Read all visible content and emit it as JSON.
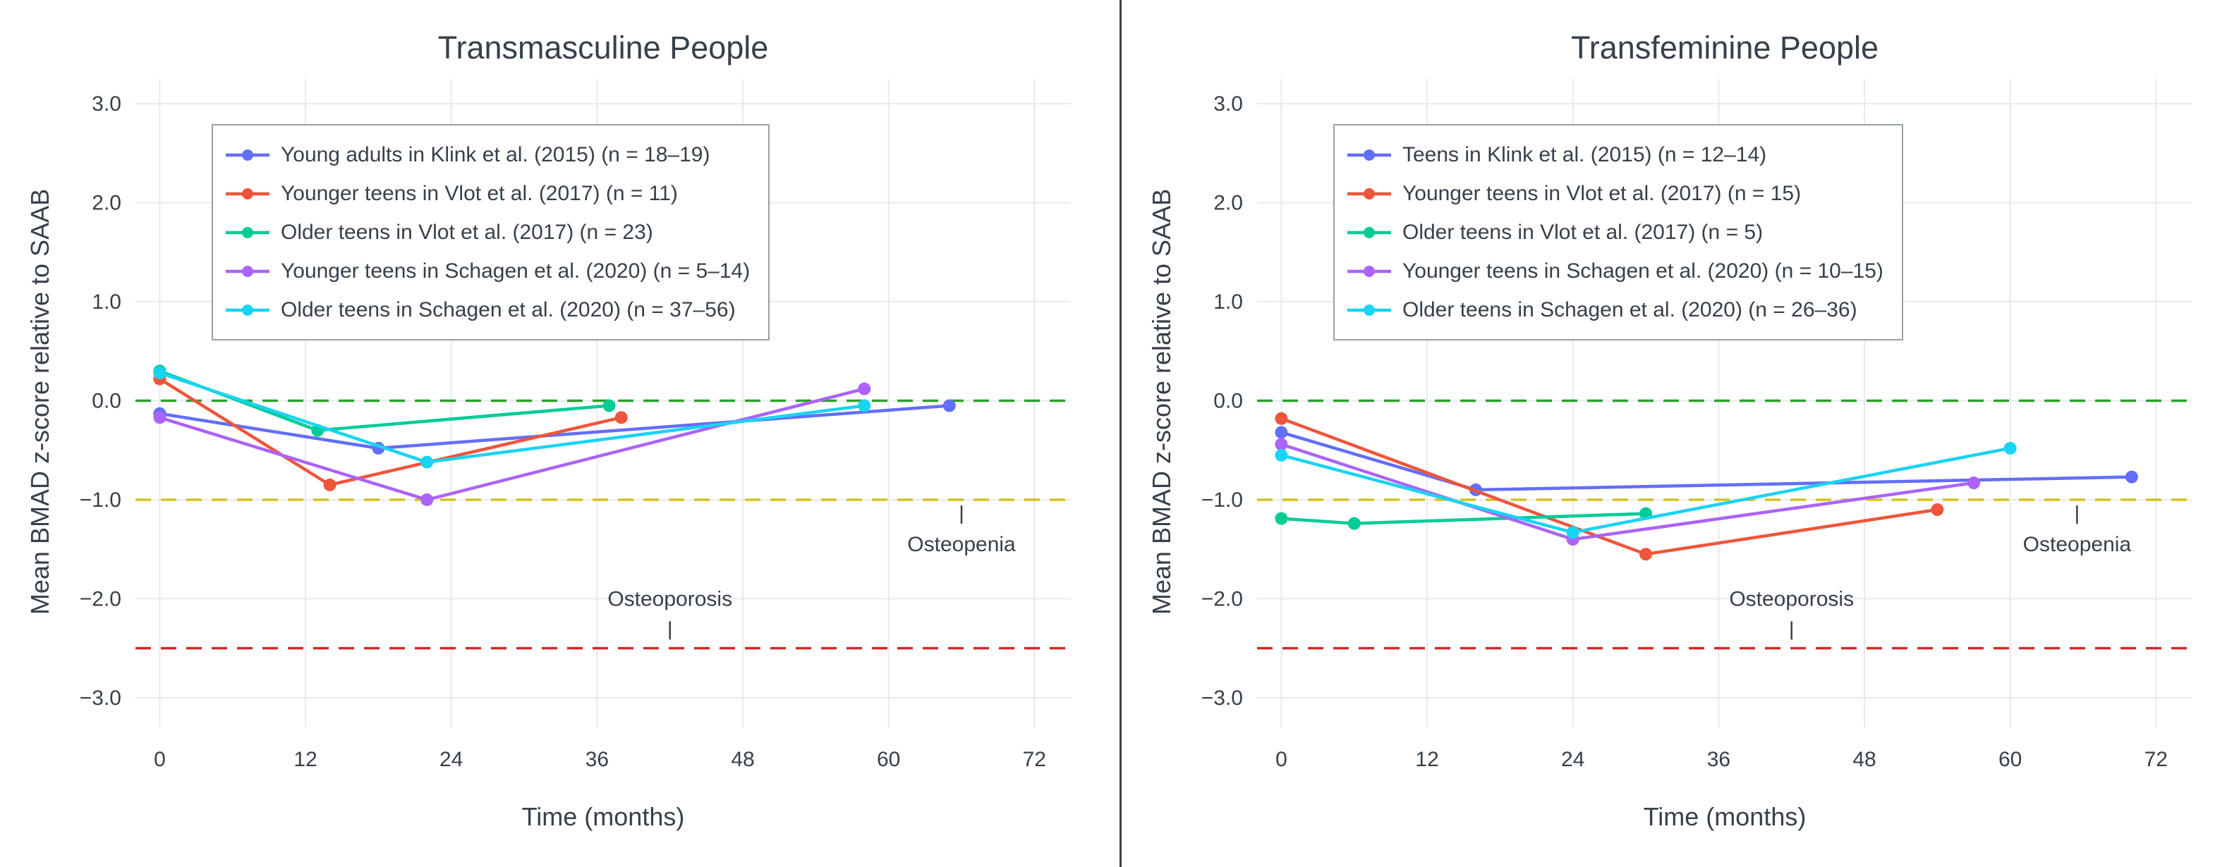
{
  "page": {
    "background": "#ffffff",
    "divider_color": "#3f3f3f",
    "text_color": "#37404a"
  },
  "chart_data": [
    {
      "type": "line",
      "title": "Transmasculine People",
      "xlabel": "Time (months)",
      "ylabel": "Mean BMAD z-score relative to SAAB",
      "xlim": [
        -2,
        75
      ],
      "ylim": [
        -3.3,
        3.25
      ],
      "grid": true,
      "grid_color": "#e7eaed",
      "legend_position": "top-left-inside",
      "xtick_values": [
        0,
        12,
        24,
        36,
        48,
        60,
        72
      ],
      "xtick_labels": [
        "0",
        "12",
        "24",
        "36",
        "48",
        "60",
        "72"
      ],
      "ytick_values": [
        3,
        2,
        1,
        0,
        -1,
        -2,
        -3
      ],
      "ytick_labels": [
        "3.0",
        "2.0",
        "1.0",
        "0.0",
        "−1.0",
        "−2.0",
        "−3.0"
      ],
      "ref_lines": [
        {
          "label": "zero-line",
          "y": 0,
          "color": "#2ca02c"
        },
        {
          "label": "osteopenia-threshold",
          "y": -1,
          "color": "#d4c21e"
        },
        {
          "label": "osteoporosis-threshold",
          "y": -2.5,
          "color": "#d62728"
        }
      ],
      "annotations": [
        {
          "text": "Osteoporosis",
          "x": 42,
          "y": -2.0,
          "tick_x": 42,
          "tick_y": -2.32
        },
        {
          "text": "Osteopenia",
          "x": 66,
          "y": -1.45,
          "tick_x": 66,
          "tick_y": -1.15
        }
      ],
      "series": [
        {
          "name": "Young adults in Klink et al. (2015) (n = 18–19)",
          "color": "#636EFA",
          "x": [
            0,
            18,
            65
          ],
          "y": [
            -0.13,
            -0.48,
            -0.05
          ]
        },
        {
          "name": "Younger teens in Vlot et al. (2017) (n = 11)",
          "color": "#EF553B",
          "x": [
            0,
            14,
            38
          ],
          "y": [
            0.22,
            -0.85,
            -0.17
          ]
        },
        {
          "name": "Older teens in Vlot et al. (2017) (n = 23)",
          "color": "#00CC96",
          "x": [
            0,
            13,
            37
          ],
          "y": [
            0.3,
            -0.3,
            -0.05
          ]
        },
        {
          "name": "Younger teens in Schagen et al. (2020) (n = 5–14)",
          "color": "#AB63FA",
          "x": [
            0,
            22,
            58
          ],
          "y": [
            -0.17,
            -1.0,
            0.12
          ]
        },
        {
          "name": "Older teens in Schagen et al. (2020) (n = 37–56)",
          "color": "#19D3F3",
          "x": [
            0,
            22,
            58
          ],
          "y": [
            0.28,
            -0.62,
            -0.05
          ]
        }
      ]
    },
    {
      "type": "line",
      "title": "Transfeminine People",
      "xlabel": "Time (months)",
      "ylabel": "Mean BMAD z-score relative to SAAB",
      "xlim": [
        -2,
        75
      ],
      "ylim": [
        -3.3,
        3.25
      ],
      "grid": true,
      "grid_color": "#e7eaed",
      "legend_position": "top-left-inside",
      "xtick_values": [
        0,
        12,
        24,
        36,
        48,
        60,
        72
      ],
      "xtick_labels": [
        "0",
        "12",
        "24",
        "36",
        "48",
        "60",
        "72"
      ],
      "ytick_values": [
        3,
        2,
        1,
        0,
        -1,
        -2,
        -3
      ],
      "ytick_labels": [
        "3.0",
        "2.0",
        "1.0",
        "0.0",
        "−1.0",
        "−2.0",
        "−3.0"
      ],
      "ref_lines": [
        {
          "label": "zero-line",
          "y": 0,
          "color": "#2ca02c"
        },
        {
          "label": "osteopenia-threshold",
          "y": -1,
          "color": "#d4c21e"
        },
        {
          "label": "osteoporosis-threshold",
          "y": -2.5,
          "color": "#d62728"
        }
      ],
      "annotations": [
        {
          "text": "Osteoporosis",
          "x": 42,
          "y": -2.0,
          "tick_x": 42,
          "tick_y": -2.32
        },
        {
          "text": "Osteopenia",
          "x": 65.5,
          "y": -1.45,
          "tick_x": 65.5,
          "tick_y": -1.15
        }
      ],
      "series": [
        {
          "name": "Teens in Klink et al. (2015) (n = 12–14)",
          "color": "#636EFA",
          "x": [
            0,
            16,
            70
          ],
          "y": [
            -0.32,
            -0.9,
            -0.77
          ]
        },
        {
          "name": "Younger teens in Vlot et al. (2017) (n = 15)",
          "color": "#EF553B",
          "x": [
            0,
            30,
            54
          ],
          "y": [
            -0.18,
            -1.55,
            -1.1
          ]
        },
        {
          "name": "Older teens in Vlot et al. (2017) (n = 5)",
          "color": "#00CC96",
          "x": [
            0,
            6,
            30
          ],
          "y": [
            -1.19,
            -1.24,
            -1.14
          ]
        },
        {
          "name": "Younger teens in Schagen et al. (2020) (n = 10–15)",
          "color": "#AB63FA",
          "x": [
            0,
            24,
            57
          ],
          "y": [
            -0.44,
            -1.4,
            -0.83
          ]
        },
        {
          "name": "Older teens in Schagen et al. (2020) (n = 26–36)",
          "color": "#19D3F3",
          "x": [
            0,
            24,
            60
          ],
          "y": [
            -0.55,
            -1.33,
            -0.48
          ]
        }
      ]
    }
  ]
}
